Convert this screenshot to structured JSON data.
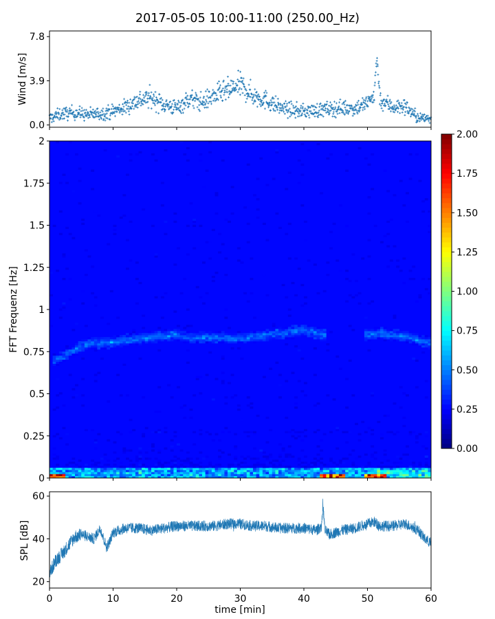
{
  "title": "2017-05-05 10:00-11:00 (250.00_Hz)",
  "colors": {
    "series": "#1f77b4",
    "axis": "#000000"
  },
  "chart_data": [
    {
      "type": "scatter",
      "name": "wind",
      "ylabel": "Wind [m/s]",
      "xlim": [
        0,
        60
      ],
      "ylim": [
        -0.2,
        8.3
      ],
      "yticks": [
        0.0,
        3.9,
        7.8
      ],
      "ytick_labels": [
        "0.0",
        "3.9",
        "7.8"
      ],
      "marker": "+",
      "trend": {
        "x": [
          0,
          2,
          4,
          6,
          8,
          10,
          12,
          14,
          16,
          18,
          20,
          22,
          24,
          26,
          28,
          30,
          32,
          34,
          36,
          38,
          40,
          42,
          44,
          46,
          48,
          50,
          51,
          51.5,
          52,
          54,
          56,
          58,
          60
        ],
        "y": [
          0.6,
          1.0,
          1.1,
          0.9,
          1.0,
          1.2,
          1.6,
          2.2,
          2.4,
          1.8,
          1.5,
          2.3,
          2.0,
          2.6,
          3.0,
          3.5,
          2.6,
          2.2,
          1.6,
          1.3,
          1.2,
          1.3,
          1.4,
          1.5,
          1.5,
          1.9,
          2.6,
          6.0,
          2.2,
          1.6,
          1.6,
          0.6,
          0.6
        ]
      }
    },
    {
      "type": "heatmap",
      "name": "spectrogram",
      "ylabel": "FFT Frequenz [Hz]",
      "xlim": [
        0,
        60
      ],
      "ylim": [
        0,
        2
      ],
      "yticks": [
        0,
        0.25,
        0.5,
        0.75,
        1,
        1.25,
        1.5,
        1.75,
        2
      ],
      "ytick_labels": [
        "0",
        "0.25",
        "0.5",
        "0.75",
        "1",
        "1.25",
        "1.5",
        "1.75",
        "2"
      ],
      "colormap": "jet",
      "colorbar": {
        "range": [
          0,
          2
        ],
        "ticks": [
          0.0,
          0.25,
          0.5,
          0.75,
          1.0,
          1.25,
          1.5,
          1.75,
          2.0
        ],
        "tick_labels": [
          "0.00",
          "0.25",
          "0.50",
          "0.75",
          "1.00",
          "1.25",
          "1.50",
          "1.75",
          "2.00"
        ]
      },
      "features": [
        {
          "label": "tonal line",
          "t": [
            1,
            4,
            6,
            9,
            12,
            15,
            17,
            20,
            22,
            25,
            28,
            31,
            34,
            37,
            40,
            43
          ],
          "f": [
            0.7,
            0.76,
            0.8,
            0.8,
            0.82,
            0.83,
            0.84,
            0.85,
            0.83,
            0.84,
            0.83,
            0.83,
            0.85,
            0.86,
            0.88,
            0.85
          ]
        },
        {
          "label": "tonal line",
          "t": [
            50,
            52,
            54,
            56,
            58,
            60
          ],
          "f": [
            0.85,
            0.86,
            0.85,
            0.84,
            0.82,
            0.8
          ]
        },
        {
          "label": "low frequency energy",
          "t": [
            0,
            2,
            43,
            46,
            50,
            52,
            55,
            58,
            60
          ],
          "f": [
            0.01,
            0.01,
            0.01,
            0.01,
            0.01,
            0.02,
            0.03,
            0.03,
            0.02
          ]
        }
      ]
    },
    {
      "type": "line",
      "name": "spl",
      "ylabel": "SPL [dB]",
      "xlabel": "time [min]",
      "xlim": [
        0,
        60
      ],
      "ylim": [
        17,
        62
      ],
      "yticks": [
        20,
        40,
        60
      ],
      "ytick_labels": [
        "20",
        "40",
        "60"
      ],
      "xticks": [
        0,
        10,
        20,
        30,
        40,
        50,
        60
      ],
      "xtick_labels": [
        "0",
        "10",
        "20",
        "30",
        "40",
        "50",
        "60"
      ],
      "x": [
        0,
        1,
        2,
        3,
        4,
        5,
        6,
        7,
        8,
        8.5,
        9,
        9.5,
        10,
        11,
        12,
        14,
        16,
        18,
        20,
        22,
        24,
        26,
        28,
        30,
        32,
        34,
        36,
        38,
        40,
        42,
        42.8,
        43,
        43.3,
        44,
        45,
        46,
        48,
        50,
        51,
        52,
        54,
        56,
        58,
        59,
        60
      ],
      "y": [
        24,
        30,
        33,
        37,
        41,
        42,
        41,
        40,
        45,
        40,
        36,
        39,
        43,
        44,
        45,
        45,
        44,
        45,
        46,
        46,
        46,
        46,
        47,
        47,
        46,
        46,
        45,
        45,
        45,
        44,
        46,
        56,
        44,
        42,
        43,
        44,
        45,
        47,
        48,
        46,
        46,
        47,
        44,
        40,
        38
      ],
      "band": 2.5
    }
  ]
}
